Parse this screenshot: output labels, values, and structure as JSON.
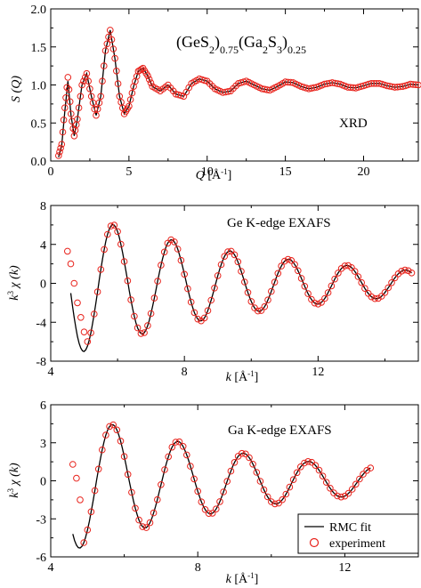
{
  "chart_data": [
    {
      "type": "line",
      "title": "(GeS2)0.75(Ga2S3)0.25",
      "title_parts": {
        "a": "(GeS",
        "b": "2",
        "c": ")",
        "d": "0.75",
        "e": "(Ga",
        "f": "2",
        "g": "S",
        "h": "3",
        "i": ")",
        "j": "0.25"
      },
      "annotation": "XRD",
      "xlabel": "Q [Å⁻¹]",
      "xlabel_parts": {
        "var": "Q",
        "unit_open": " [Å",
        "unit_sup": "-1",
        "unit_close": "]"
      },
      "ylabel": "S (Q)",
      "ylabel_parts": {
        "base": "S",
        "arg": " (Q)"
      },
      "xlim": [
        0,
        23.5
      ],
      "ylim": [
        0.0,
        2.0
      ],
      "xticks": [
        0,
        5,
        10,
        15,
        20
      ],
      "yticks": [
        0.0,
        0.5,
        1.0,
        1.5,
        2.0
      ],
      "ytick_labels": [
        "0.0",
        "0.5",
        "1.0",
        "1.5",
        "2.0"
      ],
      "series": [
        {
          "role": "fit",
          "color": "#000000",
          "x": [
            0.5,
            0.7,
            0.9,
            1.1,
            1.3,
            1.5,
            1.7,
            2.0,
            2.3,
            2.6,
            2.9,
            3.2,
            3.5,
            3.8,
            4.1,
            4.4,
            4.7,
            5.0,
            5.3,
            5.6,
            5.9,
            6.2,
            6.5,
            7.0,
            7.5,
            8.0,
            8.5,
            9.0,
            9.5,
            10.0,
            10.5,
            11.0,
            11.5,
            12.0,
            12.5,
            13.0,
            13.5,
            14.0,
            14.5,
            15.0,
            15.5,
            16.0,
            16.5,
            17.0,
            17.5,
            18.0,
            18.5,
            19.0,
            19.5,
            20.0,
            20.5,
            21.0,
            21.5,
            22.0,
            22.5,
            23.0,
            23.5
          ],
          "y": [
            0.05,
            0.2,
            0.65,
            1.05,
            0.6,
            0.33,
            0.55,
            1.0,
            1.15,
            0.85,
            0.6,
            0.85,
            1.45,
            1.72,
            1.35,
            0.85,
            0.62,
            0.72,
            0.98,
            1.18,
            1.22,
            1.12,
            0.98,
            0.92,
            1.0,
            0.88,
            0.85,
            1.02,
            1.08,
            1.05,
            0.95,
            0.9,
            0.92,
            1.02,
            1.05,
            1.0,
            0.95,
            0.93,
            0.98,
            1.04,
            1.03,
            0.98,
            0.95,
            0.97,
            1.01,
            1.03,
            1.01,
            0.97,
            0.96,
            0.99,
            1.02,
            1.02,
            0.99,
            0.97,
            0.98,
            1.01,
            1.0
          ]
        },
        {
          "role": "data",
          "color": "#e8221b",
          "x": [
            0.5,
            0.7,
            0.9,
            1.1,
            1.3,
            1.5,
            1.7,
            2.0,
            2.3,
            2.6,
            2.9,
            3.2,
            3.5,
            3.8,
            4.1,
            4.4,
            4.7,
            5.0,
            5.3,
            5.6,
            5.9,
            6.2,
            6.5,
            7.0,
            7.5,
            8.0,
            8.5,
            9.0,
            9.5,
            10.0,
            10.5,
            11.0,
            11.5,
            12.0,
            12.5,
            13.0,
            13.5,
            14.0,
            14.5,
            15.0,
            15.5,
            16.0,
            16.5,
            17.0,
            17.5,
            18.0,
            18.5,
            19.0,
            19.5,
            20.0,
            20.5,
            21.0,
            21.5,
            22.0,
            22.5,
            23.0,
            23.5
          ],
          "y": [
            0.07,
            0.22,
            0.7,
            1.1,
            0.62,
            0.33,
            0.55,
            1.0,
            1.15,
            0.85,
            0.6,
            0.85,
            1.45,
            1.72,
            1.35,
            0.85,
            0.62,
            0.72,
            0.98,
            1.18,
            1.22,
            1.12,
            0.98,
            0.92,
            1.0,
            0.88,
            0.85,
            1.02,
            1.08,
            1.05,
            0.95,
            0.9,
            0.92,
            1.02,
            1.05,
            1.0,
            0.95,
            0.93,
            0.98,
            1.04,
            1.03,
            0.98,
            0.95,
            0.97,
            1.01,
            1.03,
            1.01,
            0.97,
            0.96,
            0.99,
            1.02,
            1.02,
            0.99,
            0.97,
            0.98,
            1.01,
            1.0
          ]
        }
      ]
    },
    {
      "type": "line",
      "annotation": "Ge K-edge EXAFS",
      "xlabel": "k [Å⁻¹]",
      "xlabel_parts": {
        "var": "k",
        "unit_open": " [Å",
        "unit_sup": "-1",
        "unit_close": "]"
      },
      "ylabel": "k3 χ (k)",
      "ylabel_parts": {
        "base": "k",
        "sup": "3",
        "rest": " χ (k)"
      },
      "xlim": [
        4,
        15
      ],
      "ylim": [
        -8,
        8
      ],
      "xticks": [
        4,
        8,
        12
      ],
      "yticks": [
        -8,
        -4,
        0,
        4,
        8
      ],
      "ytick_labels": [
        "-8",
        "-4",
        "0",
        "4",
        "8"
      ],
      "fit": {
        "model": "damped_wave",
        "amp": 7.0,
        "decay": 0.17,
        "k0": 5.0,
        "period": 1.75,
        "phase": 3.1416,
        "xrange": [
          4.6,
          14.8
        ],
        "step": 0.05
      },
      "data": {
        "x": [
          4.5,
          4.6,
          4.7,
          4.8,
          4.9,
          5.0,
          5.1
        ],
        "y": [
          3.3,
          2.0,
          0.0,
          -2.0,
          -3.5,
          -5.0,
          -6.0
        ],
        "continue_step": 0.1,
        "continue_to": 14.8,
        "shift": 0.08
      },
      "colors": {
        "fit": "#000000",
        "data": "#e8221b"
      }
    },
    {
      "type": "line",
      "annotation": "Ga K-edge EXAFS",
      "xlabel": "k [Å⁻¹]",
      "xlabel_parts": {
        "var": "k",
        "unit_open": " [Å",
        "unit_sup": "-1",
        "unit_close": "]"
      },
      "ylabel": "k3 χ (k)",
      "ylabel_parts": {
        "base": "k",
        "sup": "3",
        "rest": " χ (k)"
      },
      "xlim": [
        4,
        14
      ],
      "ylim": [
        -6,
        6
      ],
      "xticks": [
        4,
        8,
        12
      ],
      "yticks": [
        -6,
        -3,
        0,
        3,
        6
      ],
      "ytick_labels": [
        "-6",
        "-3",
        "0",
        "3",
        "6"
      ],
      "fit": {
        "model": "damped_wave",
        "amp": 5.3,
        "decay": 0.2,
        "k0": 4.8,
        "period": 1.78,
        "phase": 3.1416,
        "xrange": [
          4.6,
          12.7
        ],
        "step": 0.05
      },
      "data": {
        "x": [
          4.6,
          4.7,
          4.8
        ],
        "y": [
          1.3,
          0.2,
          -1.5
        ],
        "continue_step": 0.1,
        "continue_to": 12.7,
        "shift": 0.06
      },
      "legend": {
        "entries": [
          "RMC fit",
          "experiment"
        ],
        "position": "bottom-right"
      },
      "colors": {
        "fit": "#000000",
        "data": "#e8221b"
      }
    }
  ]
}
